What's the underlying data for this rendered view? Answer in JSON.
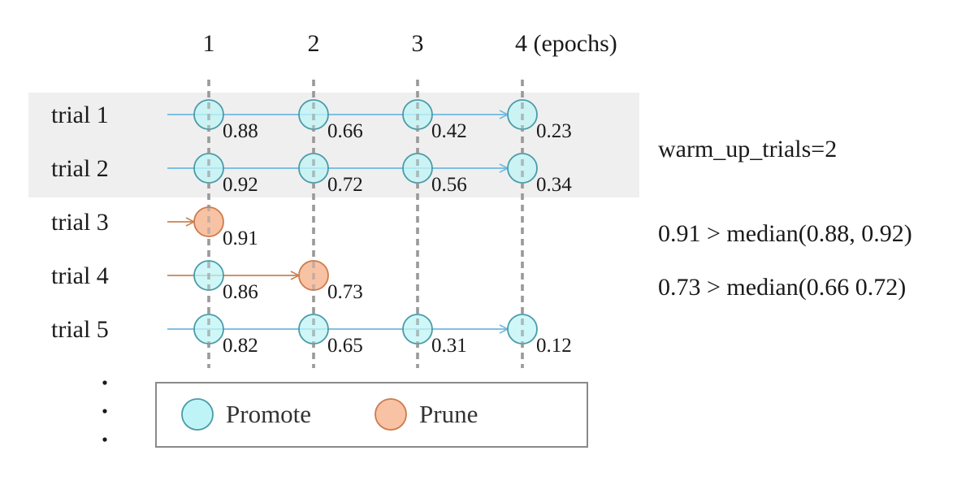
{
  "epochs": [
    "1",
    "2",
    "3",
    "4 (epochs)"
  ],
  "warmup_label": "warm_up_trials=2",
  "trials": [
    {
      "label": "trial 1",
      "steps": [
        {
          "value": "0.88",
          "status": "promote"
        },
        {
          "value": "0.66",
          "status": "promote"
        },
        {
          "value": "0.42",
          "status": "promote"
        },
        {
          "value": "0.23",
          "status": "promote"
        }
      ]
    },
    {
      "label": "trial 2",
      "steps": [
        {
          "value": "0.92",
          "status": "promote"
        },
        {
          "value": "0.72",
          "status": "promote"
        },
        {
          "value": "0.56",
          "status": "promote"
        },
        {
          "value": "0.34",
          "status": "promote"
        }
      ]
    },
    {
      "label": "trial 3",
      "steps": [
        {
          "value": "0.91",
          "status": "prune"
        }
      ]
    },
    {
      "label": "trial 4",
      "steps": [
        {
          "value": "0.86",
          "status": "promote"
        },
        {
          "value": "0.73",
          "status": "prune"
        }
      ]
    },
    {
      "label": "trial 5",
      "steps": [
        {
          "value": "0.82",
          "status": "promote"
        },
        {
          "value": "0.65",
          "status": "promote"
        },
        {
          "value": "0.31",
          "status": "promote"
        },
        {
          "value": "0.12",
          "status": "promote"
        }
      ]
    }
  ],
  "notes": [
    {
      "text": "0.91 > median(0.88, 0.92)"
    },
    {
      "text": "0.73 > median(0.66 0.72)"
    }
  ],
  "legend": {
    "promote_label": "Promote",
    "prune_label": "Prune"
  },
  "colors": {
    "promote_fill": "#bff4f6",
    "promote_stroke": "#4a9ba8",
    "prune_fill": "#f8c2a4",
    "prune_stroke": "#cf7a4a",
    "promote_arrow": "#6fb8e2",
    "prune_arrow": "#c98253",
    "guide": "#9a9a9a",
    "warmup_band": "#efefef"
  }
}
